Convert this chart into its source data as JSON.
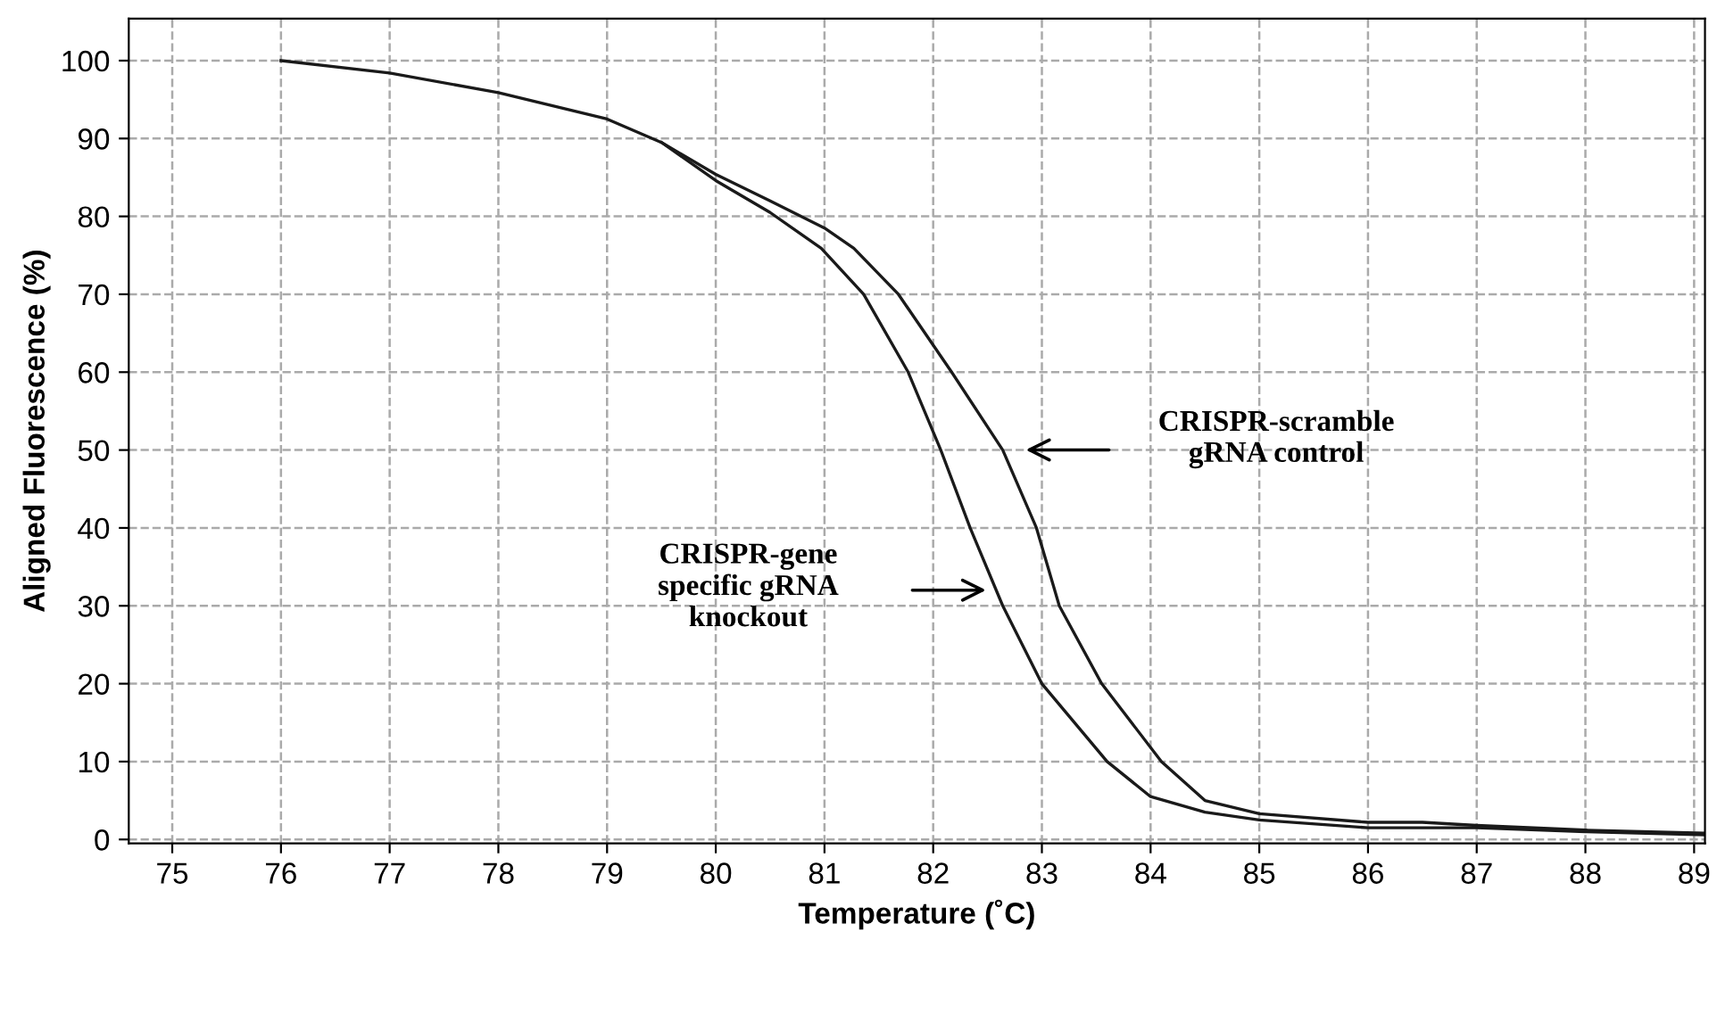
{
  "chart_data": {
    "type": "line",
    "xlabel": "Temperature (˚C)",
    "ylabel": "Aligned Fluorescence (%)",
    "xlim": [
      74.6,
      89.1
    ],
    "ylim": [
      -0.5,
      105.4
    ],
    "xticks": [
      75,
      76,
      77,
      78,
      79,
      80,
      81,
      82,
      83,
      84,
      85,
      86,
      87,
      88,
      89
    ],
    "yticks": [
      0,
      10,
      20,
      30,
      40,
      50,
      60,
      70,
      80,
      90,
      100
    ],
    "grid": true,
    "marker": "none",
    "line_style": "solid",
    "series": [
      {
        "color": "#1a1a1a",
        "x": [
          76,
          77,
          78,
          79,
          79.5,
          80,
          80.5,
          81,
          81.27,
          81.68,
          82.17,
          82.64,
          82.95,
          83.16,
          83.55,
          84.1,
          84.5,
          85,
          86,
          86.5,
          87,
          88,
          89.1
        ],
        "values": [
          100,
          98.4,
          95.9,
          92.5,
          89.5,
          85.4,
          82,
          78.5,
          75.9,
          70,
          60,
          50,
          40,
          30,
          20,
          10,
          5,
          3.3,
          2.2,
          2.2,
          1.8,
          1.2,
          0.8
        ]
      },
      {
        "color": "#1a1a1a",
        "x": [
          79.5,
          80,
          80.5,
          80.97,
          81.36,
          81.77,
          82.07,
          82.34,
          82.64,
          83.0,
          83.6,
          84,
          84.5,
          85,
          86,
          87,
          88,
          89.1
        ],
        "values": [
          89.5,
          84.6,
          80.5,
          75.9,
          70,
          60,
          50,
          40,
          30,
          20,
          10,
          5.5,
          3.5,
          2.5,
          1.5,
          1.5,
          1,
          0.6
        ]
      }
    ],
    "annotations": [
      "CRISPR-scramble\ngRNA control",
      "CRISPR-gene\nspecific gRNA\nknockout"
    ]
  }
}
